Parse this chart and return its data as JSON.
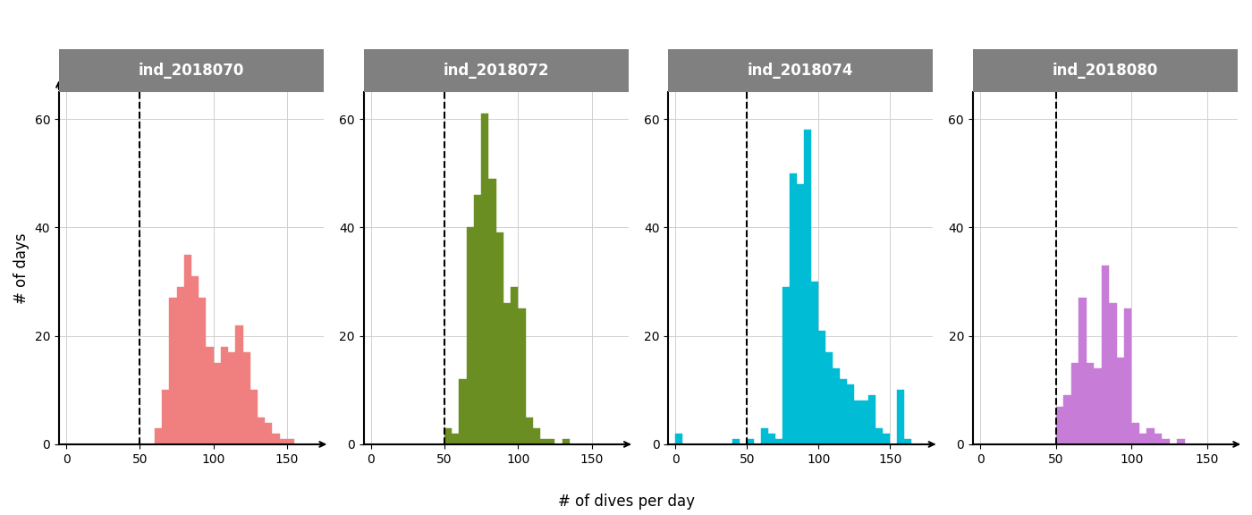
{
  "panels": [
    {
      "title": "ind_2018070",
      "color": "#F08080",
      "xlim": [
        -5,
        175
      ],
      "xticks": [
        0,
        50,
        100,
        150
      ],
      "threshold": 50,
      "bin_start": 60,
      "bin_width": 5,
      "counts": [
        3,
        10,
        27,
        29,
        35,
        31,
        27,
        18,
        15,
        18,
        17,
        22,
        17,
        10,
        5,
        4,
        2,
        1,
        1
      ]
    },
    {
      "title": "ind_2018072",
      "color": "#6B8E23",
      "xlim": [
        -5,
        175
      ],
      "xticks": [
        0,
        50,
        100,
        150
      ],
      "threshold": 50,
      "bin_start": 50,
      "bin_width": 5,
      "counts": [
        3,
        2,
        12,
        40,
        46,
        61,
        49,
        39,
        26,
        29,
        25,
        5,
        3,
        1,
        1,
        0,
        1,
        0
      ]
    },
    {
      "title": "ind_2018074",
      "color": "#00BCD4",
      "xlim": [
        -5,
        180
      ],
      "xticks": [
        0,
        50,
        100,
        150
      ],
      "threshold": 50,
      "bin_start": 0,
      "bin_width": 5,
      "counts": [
        2,
        0,
        0,
        0,
        0,
        0,
        0,
        0,
        1,
        0,
        1,
        0,
        3,
        2,
        1,
        29,
        50,
        48,
        58,
        30,
        21,
        17,
        14,
        12,
        11,
        8,
        8,
        9,
        3,
        2,
        0,
        10,
        1,
        0
      ]
    },
    {
      "title": "ind_2018080",
      "color": "#C77DD7",
      "xlim": [
        -5,
        170
      ],
      "xticks": [
        0,
        50,
        100,
        150
      ],
      "threshold": 50,
      "bin_start": 50,
      "bin_width": 5,
      "counts": [
        7,
        9,
        15,
        27,
        15,
        14,
        33,
        26,
        16,
        25,
        4,
        2,
        3,
        2,
        1,
        0,
        1
      ]
    }
  ],
  "ylabel": "# of days",
  "xlabel": "# of dives per day",
  "facet_bg_color": "#808080",
  "facet_text_color": "white",
  "ylim": [
    0,
    65
  ],
  "yticks": [
    0,
    20,
    40,
    60
  ],
  "grid_color": "#d0d0d0",
  "bg_color": "white"
}
